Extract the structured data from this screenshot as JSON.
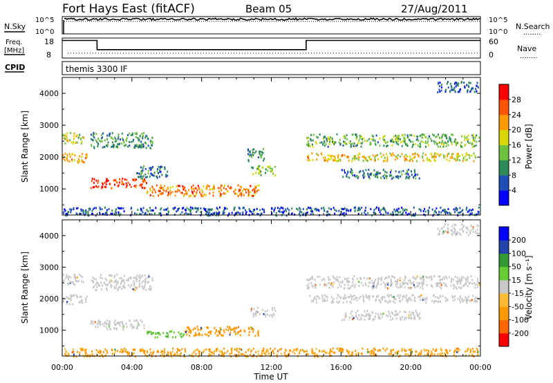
{
  "header": {
    "station": "Fort Hays East (fitACF)",
    "beam": "Beam 05",
    "date": "27/Aug/2011"
  },
  "status_panels": {
    "nsky_label": "N.Sky",
    "nsearch_label": "N.Search",
    "noise_ticks": [
      "10^5",
      "10^0"
    ],
    "freq_label": "Freq.",
    "freq_unit": "[MHz]",
    "freq_ticks": [
      "18",
      "8"
    ],
    "nave_label": "Nave",
    "nave_ticks": [
      "60",
      "0"
    ],
    "cpid_label": "CPID",
    "cpid_value": "themis 3300 IF",
    "dotted_legend": "........"
  },
  "colors": {
    "power_scale": [
      "#0000ff",
      "#1f4fb4",
      "#2e8b57",
      "#6fbf40",
      "#d8d800",
      "#ff9900",
      "#ff5500",
      "#ff0000"
    ],
    "velocity_scale": [
      "#ff0000",
      "#ff6600",
      "#ff9900",
      "#ffbb33",
      "#c8c8c8",
      "#66cc33",
      "#339933",
      "#2244aa",
      "#0000ff"
    ],
    "velocity_ground": "#c8c8c8"
  },
  "chart_data": [
    {
      "type": "heatmap",
      "name": "power",
      "xlabel": "",
      "ylabel": "Slant Range [km]",
      "xlim": [
        0,
        24
      ],
      "ylim": [
        180,
        4500
      ],
      "x_ticks": [
        "00:00",
        "04:00",
        "08:00",
        "12:00",
        "16:00",
        "20:00",
        "00:00"
      ],
      "y_ticks": [
        1000,
        2000,
        3000,
        4000
      ],
      "colorbar": {
        "label": "Power [dB]",
        "ticks": [
          4,
          8,
          12,
          16,
          20,
          24,
          28
        ],
        "range": [
          0,
          30
        ]
      },
      "regions": [
        {
          "t0": 0.0,
          "t1": 1.4,
          "r0": 1850,
          "r1": 2150,
          "value": 20
        },
        {
          "t0": 0.0,
          "t1": 1.2,
          "r0": 2450,
          "r1": 2800,
          "value": 16
        },
        {
          "t0": 1.6,
          "t1": 4.8,
          "r0": 1050,
          "r1": 1350,
          "value": 26
        },
        {
          "t0": 1.6,
          "t1": 5.2,
          "r0": 2300,
          "r1": 2800,
          "value": 10
        },
        {
          "t0": 4.2,
          "t1": 6.0,
          "r0": 1350,
          "r1": 1750,
          "value": 8
        },
        {
          "t0": 4.8,
          "t1": 11.3,
          "r0": 800,
          "r1": 1150,
          "value": 22
        },
        {
          "t0": 10.8,
          "t1": 12.2,
          "r0": 1450,
          "r1": 1750,
          "value": 14
        },
        {
          "t0": 10.6,
          "t1": 11.6,
          "r0": 1900,
          "r1": 2300,
          "value": 10
        },
        {
          "t0": 14.0,
          "t1": 23.9,
          "r0": 1900,
          "r1": 2150,
          "value": 18
        },
        {
          "t0": 14.0,
          "t1": 23.9,
          "r0": 2350,
          "r1": 2750,
          "value": 12
        },
        {
          "t0": 16.0,
          "t1": 20.5,
          "r0": 1350,
          "r1": 1650,
          "value": 8
        },
        {
          "t0": 21.5,
          "t1": 23.9,
          "r0": 4050,
          "r1": 4400,
          "value": 6
        },
        {
          "t0": 0.0,
          "t1": 23.9,
          "r0": 190,
          "r1": 450,
          "value": 6
        }
      ]
    },
    {
      "type": "heatmap",
      "name": "velocity",
      "xlabel": "Time UT",
      "ylabel": "Slant Range [km]",
      "xlim": [
        0,
        24
      ],
      "ylim": [
        180,
        4500
      ],
      "x_ticks": [
        "00:00",
        "04:00",
        "08:00",
        "12:00",
        "16:00",
        "20:00",
        "00:00"
      ],
      "y_ticks": [
        1000,
        2000,
        3000,
        4000
      ],
      "colorbar": {
        "label": "Velocity [m s⁻¹]",
        "ticks": [
          200,
          100,
          50,
          15,
          -15,
          -50,
          -100,
          -200
        ],
        "range": [
          -250,
          250
        ]
      },
      "regions": [
        {
          "t0": 0.0,
          "t1": 1.4,
          "r0": 1850,
          "r1": 2150,
          "value": 0
        },
        {
          "t0": 0.0,
          "t1": 1.2,
          "r0": 2450,
          "r1": 2800,
          "value": 0
        },
        {
          "t0": 1.6,
          "t1": 4.8,
          "r0": 1050,
          "r1": 1350,
          "value": 0
        },
        {
          "t0": 1.6,
          "t1": 5.2,
          "r0": 2300,
          "r1": 2800,
          "value": 0
        },
        {
          "t0": 4.8,
          "t1": 7.0,
          "r0": 800,
          "r1": 1000,
          "value": 40
        },
        {
          "t0": 7.0,
          "t1": 11.3,
          "r0": 850,
          "r1": 1150,
          "value": -70
        },
        {
          "t0": 10.8,
          "t1": 12.2,
          "r0": 1450,
          "r1": 1750,
          "value": 0
        },
        {
          "t0": 14.0,
          "t1": 23.9,
          "r0": 1900,
          "r1": 2150,
          "value": 0
        },
        {
          "t0": 14.0,
          "t1": 23.9,
          "r0": 2350,
          "r1": 2750,
          "value": 0
        },
        {
          "t0": 16.0,
          "t1": 20.5,
          "r0": 1350,
          "r1": 1650,
          "value": 0
        },
        {
          "t0": 21.5,
          "t1": 23.9,
          "r0": 4050,
          "r1": 4400,
          "value": 0
        },
        {
          "t0": 0.0,
          "t1": 23.9,
          "r0": 190,
          "r1": 450,
          "value": -60
        }
      ]
    }
  ],
  "status_data": {
    "noise_sky_level": 0.85,
    "noise_search_level": 0.8,
    "frequency_mhz": [
      {
        "t0": 0.0,
        "t1": 2.0,
        "value": 16.8
      },
      {
        "t0": 2.0,
        "t1": 14.0,
        "value": 12.2
      },
      {
        "t0": 14.0,
        "t1": 24.0,
        "value": 16.8
      }
    ],
    "nave": 15
  }
}
